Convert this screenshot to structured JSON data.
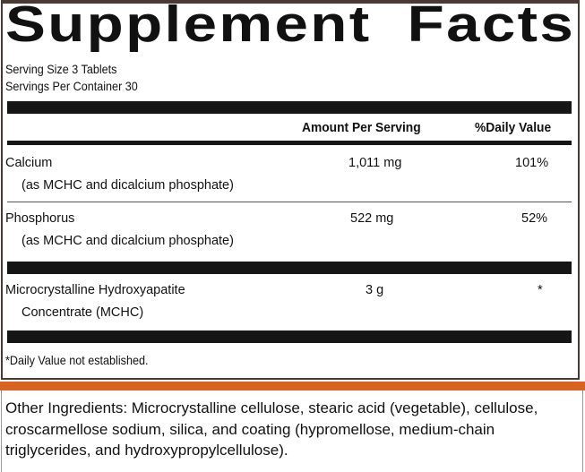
{
  "title_word1": "Supplement",
  "title_word2": "Facts",
  "serving_size": "Serving Size 3 Tablets",
  "servings_per_container": "Servings Per Container 30",
  "header": {
    "amount": "Amount Per Serving",
    "dv": "%Daily Value"
  },
  "rows": [
    {
      "name": "Calcium",
      "sub": "(as MCHC and dicalcium phosphate)",
      "amount": "1,011 mg",
      "dv": "101%"
    },
    {
      "name": "Phosphorus",
      "sub": "(as MCHC and dicalcium phosphate)",
      "amount": "522 mg",
      "dv": "52%"
    },
    {
      "name": "Microcrystalline Hydroxyapatite",
      "sub": "Concentrate (MCHC)",
      "amount": "3 g",
      "dv": "*"
    }
  ],
  "footnote": "*Daily Value not established.",
  "other_ingredients": "Other Ingredients: Microcrystalline cellulose, stearic acid (vegetable), cellulose, croscarmellose sodium, silica, and coating (hypromellose, medium-chain triglycerides, and hydroxypropylcellulose).",
  "colors": {
    "border": "#4a3a33",
    "accent": "#d9631f",
    "bar": "#151515"
  }
}
